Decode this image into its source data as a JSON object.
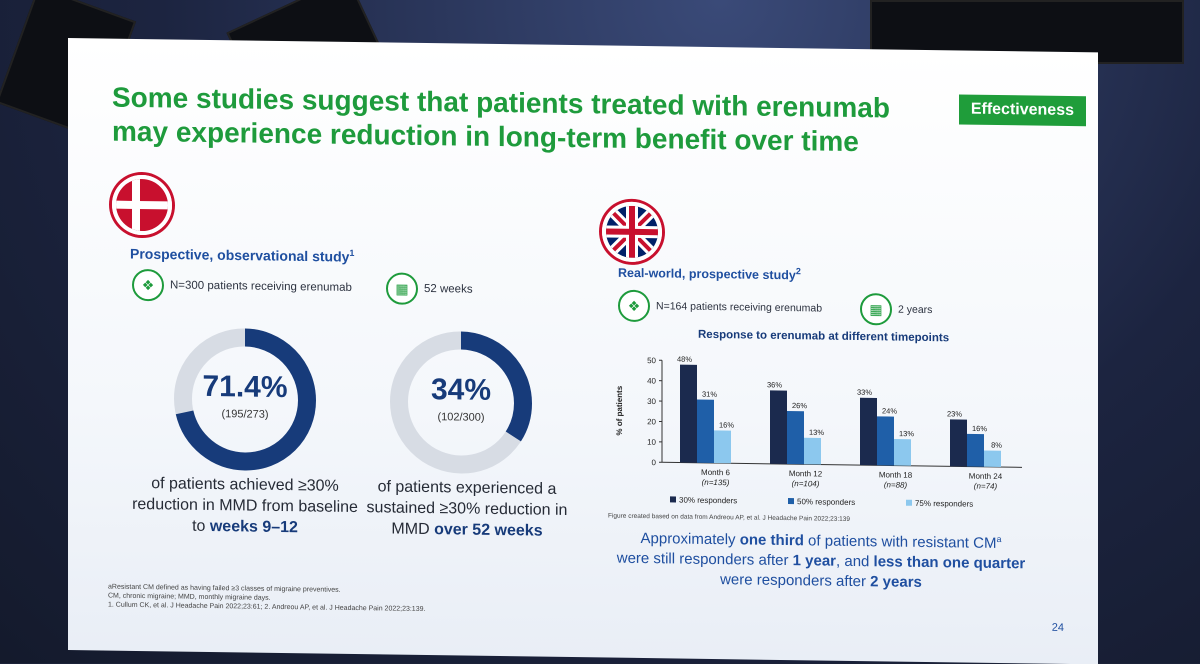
{
  "slide": {
    "tag": "Effectiveness",
    "title_line1": "Some studies suggest that patients treated with erenumab",
    "title_line2": "may experience reduction in long-term benefit over time",
    "page_number": "24"
  },
  "left_study": {
    "heading": "Prospective, observational study",
    "heading_ref": "1",
    "patients": "N=300 patients receiving erenumab",
    "duration": "52 weeks",
    "donut1": {
      "value_label": "71.4%",
      "fraction_label": "(195/273)",
      "fraction": 0.714
    },
    "donut2": {
      "value_label": "34%",
      "fraction_label": "(102/300)",
      "fraction": 0.34
    },
    "caption1": {
      "pre": "of patients achieved ≥30% reduction in MMD from baseline to ",
      "bold": "weeks 9–12"
    },
    "caption2": {
      "pre": "of patients experienced a sustained ≥30% reduction in MMD ",
      "bold": "over 52 weeks"
    }
  },
  "right_study": {
    "heading": "Real-world, prospective study",
    "heading_ref": "2",
    "patients": "N=164 patients receiving erenumab",
    "duration": "2 years",
    "figure_note": "Figure created based on data from Andreou AP, et al. J Headache Pain 2022;23:139",
    "summary_1": "Approximately ",
    "summary_2": "one third",
    "summary_3": " of patients with resistant CM",
    "summary_sup": "a",
    "summary_4": "were still responders after ",
    "summary_5": "1 year",
    "summary_6": ", and ",
    "summary_7": "less than one quarter",
    "summary_8": " were responders after ",
    "summary_9": "2 years"
  },
  "footnotes": {
    "line1": "aResistant CM defined as having failed ≥3 classes of migraine preventives.",
    "line2": "CM, chronic migraine; MMD, monthly migraine days.",
    "line3": "1. Cullum CK, et al. J Headache Pain 2022;23:61; 2. Andreou AP, et al. J Headache Pain 2022;23:139."
  },
  "colors": {
    "brand_green": "#1e9b3c",
    "navy": "#173b7a",
    "dark_navy": "#1b2a4e",
    "mid_blue": "#1f5fa8",
    "light_blue": "#8cc8ee",
    "donut_track": "#d7dce4"
  },
  "icons": [
    "people-icon",
    "calendar-icon",
    "denmark-flag-icon",
    "uk-flag-icon"
  ],
  "chart_data": {
    "type": "bar",
    "title": "Response to erenumab at different timepoints",
    "ylabel": "% of patients",
    "ylim": [
      0,
      50
    ],
    "yticks": [
      0,
      10,
      20,
      30,
      40,
      50
    ],
    "categories": [
      "Month 6",
      "Month 12",
      "Month 18",
      "Month 24"
    ],
    "category_n": [
      "(n=135)",
      "(n=104)",
      "(n=88)",
      "(n=74)"
    ],
    "series": [
      {
        "name": "30% responders",
        "values": [
          48,
          36,
          33,
          23
        ],
        "labels": [
          "48%",
          "36%",
          "33%",
          "23%"
        ],
        "color": "#1b2a4e"
      },
      {
        "name": "50% responders",
        "values": [
          31,
          26,
          24,
          16
        ],
        "labels": [
          "31%",
          "26%",
          "24%",
          "16%"
        ],
        "color": "#1f5fa8"
      },
      {
        "name": "75% responders",
        "values": [
          16,
          13,
          13,
          8
        ],
        "labels": [
          "16%",
          "13%",
          "13%",
          "8%"
        ],
        "color": "#8cc8ee"
      }
    ],
    "legend": "bottom",
    "grid": false
  }
}
